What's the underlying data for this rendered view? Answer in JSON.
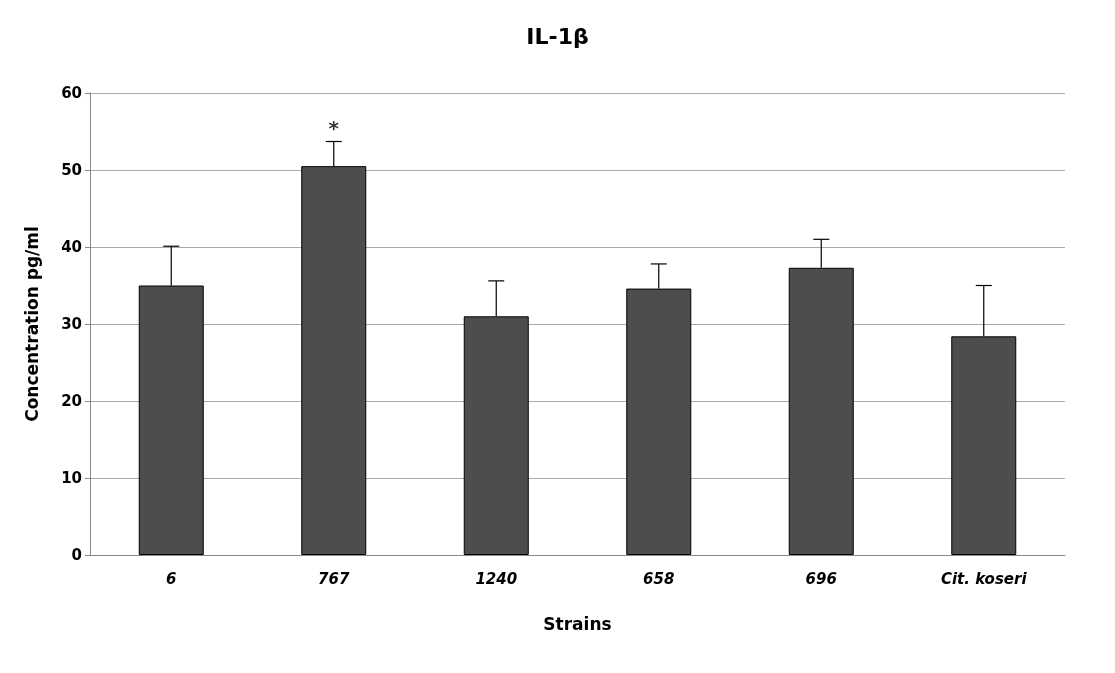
{
  "chart_data": {
    "type": "bar",
    "title": "IL-1β",
    "xlabel": "Strains",
    "ylabel": "Concentration pg/ml",
    "categories": [
      "6",
      "767",
      "1240",
      "658",
      "696",
      "Cit. koseri"
    ],
    "values": [
      35,
      50.5,
      31,
      34.6,
      37.3,
      28.4
    ],
    "errors": [
      [
        35,
        40.1
      ],
      [
        50.5,
        53.7
      ],
      [
        31,
        35.6
      ],
      [
        34.6,
        37.8
      ],
      [
        37.3,
        41
      ],
      [
        28.4,
        35
      ]
    ],
    "color": "#4d4d4d",
    "ylim": [
      0,
      60
    ],
    "yticks": [
      0,
      10,
      20,
      30,
      40,
      50,
      60
    ],
    "grid": "y",
    "annotations": [
      "*"
    ]
  }
}
